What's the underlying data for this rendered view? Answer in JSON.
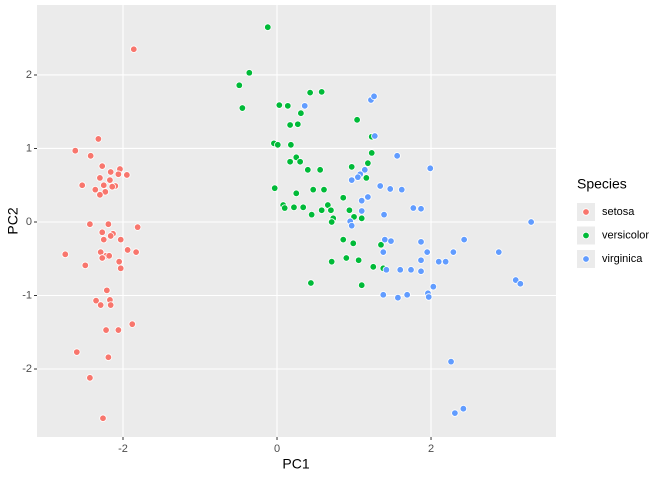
{
  "chart_data": {
    "type": "scatter",
    "x_label": "PC1",
    "y_label": "PC2",
    "legend_title": "Species",
    "legend_position": "right",
    "grid": true,
    "xlim": [
      -3.117,
      3.623
    ],
    "ylim": [
      -2.925,
      2.952
    ],
    "xticks": [
      -2,
      0,
      2
    ],
    "yticks": [
      -2,
      -1,
      0,
      1,
      2
    ],
    "series": [
      {
        "name": "setosa",
        "color": "#F8766D",
        "x": [
          -1.86,
          -2.32,
          -2.62,
          -2.42,
          -2.27,
          -2.04,
          -2.06,
          -2.16,
          -1.95,
          -2.3,
          -2.17,
          -2.53,
          -2.36,
          -2.25,
          -2.1,
          -2.23,
          -2.3,
          -2.14,
          -2.43,
          -2.19,
          -1.81,
          -2.27,
          -2.13,
          -2.25,
          -2.03,
          -2.16,
          -2.75,
          -2.29,
          -2.22,
          -1.83,
          -1.94,
          -2.49,
          -2.27,
          -2.05,
          -2.18,
          -2.03,
          -2.21,
          -2.35,
          -2.29,
          -2.17,
          -2.16,
          -2.22,
          -2.06,
          -1.88,
          -2.6,
          -2.19,
          -2.43,
          -2.26
        ],
        "y": [
          2.35,
          1.13,
          0.97,
          0.9,
          0.76,
          0.72,
          0.65,
          0.68,
          0.64,
          0.6,
          0.57,
          0.5,
          0.44,
          0.5,
          0.49,
          0.41,
          0.37,
          0.48,
          -0.03,
          -0.03,
          -0.07,
          -0.14,
          -0.16,
          -0.24,
          -0.24,
          -0.19,
          -0.44,
          -0.41,
          -0.46,
          -0.41,
          -0.38,
          -0.59,
          -0.49,
          -0.54,
          -0.46,
          -0.63,
          -0.93,
          -1.07,
          -1.13,
          -1.06,
          -1.13,
          -1.47,
          -1.47,
          -1.39,
          -1.77,
          -1.84,
          -2.12,
          -2.67
        ]
      },
      {
        "name": "versicolor",
        "color": "#00BA38",
        "x": [
          -0.12,
          -0.36,
          -0.49,
          -0.45,
          0.03,
          0.14,
          0.43,
          0.58,
          0.31,
          0.17,
          0.27,
          -0.04,
          0.01,
          0.18,
          0.25,
          0.3,
          0.17,
          0.4,
          0.56,
          1.04,
          1.23,
          1.23,
          1.18,
          0.97,
          1.16,
          -0.03,
          0.25,
          0.47,
          0.61,
          0.08,
          0.1,
          0.22,
          0.34,
          0.45,
          0.58,
          0.66,
          0.7,
          0.86,
          0.94,
          0.73,
          1.0,
          1.1,
          0.71,
          0.86,
          0.99,
          1.35,
          1.06,
          0.9,
          0.71,
          1.25,
          1.38,
          0.44,
          1.1
        ],
        "y": [
          2.65,
          2.03,
          1.86,
          1.55,
          1.59,
          1.58,
          1.76,
          1.77,
          1.48,
          1.32,
          1.33,
          1.07,
          1.05,
          1.05,
          0.88,
          0.82,
          0.82,
          0.71,
          0.71,
          1.39,
          1.16,
          0.94,
          0.8,
          0.75,
          0.6,
          0.46,
          0.39,
          0.44,
          0.44,
          0.23,
          0.19,
          0.2,
          0.2,
          0.1,
          0.16,
          0.23,
          0.16,
          0.33,
          0.16,
          0.05,
          0.07,
          0.05,
          0.0,
          -0.24,
          -0.29,
          -0.31,
          -0.52,
          -0.49,
          -0.54,
          -0.61,
          -0.63,
          -0.83,
          -0.86
        ]
      },
      {
        "name": "virginica",
        "color": "#619CFF",
        "x": [
          0.36,
          1.22,
          1.26,
          1.27,
          1.56,
          1.99,
          1.14,
          1.08,
          1.05,
          0.97,
          1.34,
          1.47,
          1.62,
          1.77,
          1.87,
          1.18,
          1.1,
          1.1,
          1.39,
          0.95,
          0.97,
          3.3,
          1.4,
          1.48,
          1.87,
          1.95,
          2.43,
          2.29,
          2.88,
          1.38,
          2.19,
          1.87,
          1.74,
          1.6,
          1.42,
          1.87,
          2.1,
          2.03,
          1.96,
          1.97,
          1.38,
          1.57,
          1.69,
          3.1,
          3.16,
          2.26,
          2.31,
          2.42
        ],
        "y": [
          1.58,
          1.66,
          1.71,
          1.17,
          0.9,
          0.73,
          0.71,
          0.65,
          0.61,
          0.57,
          0.49,
          0.45,
          0.44,
          0.19,
          0.18,
          0.34,
          0.29,
          0.15,
          0.1,
          0.01,
          -0.05,
          0.0,
          -0.24,
          -0.26,
          -0.27,
          -0.41,
          -0.24,
          -0.41,
          -0.41,
          -0.41,
          -0.54,
          -0.52,
          -0.65,
          -0.65,
          -0.65,
          -0.67,
          -0.54,
          -0.88,
          -0.97,
          -1.02,
          -0.99,
          -1.03,
          -0.99,
          -0.79,
          -0.84,
          -1.9,
          -2.6,
          -2.54
        ]
      }
    ]
  }
}
